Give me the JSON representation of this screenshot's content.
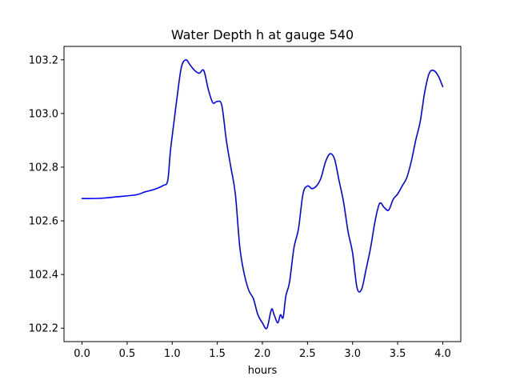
{
  "chart_data": {
    "type": "line",
    "title": "Water Depth h at gauge 540",
    "xlabel": "hours",
    "ylabel": "",
    "xlim": [
      -0.2,
      4.2
    ],
    "ylim": [
      102.15,
      103.25
    ],
    "xticks": [
      0.0,
      0.5,
      1.0,
      1.5,
      2.0,
      2.5,
      3.0,
      3.5,
      4.0
    ],
    "xtick_labels": [
      "0.0",
      "0.5",
      "1.0",
      "1.5",
      "2.0",
      "2.5",
      "3.0",
      "3.5",
      "4.0"
    ],
    "yticks": [
      102.2,
      102.4,
      102.6,
      102.8,
      103.0,
      103.2
    ],
    "ytick_labels": [
      "102.2",
      "102.4",
      "102.6",
      "102.8",
      "103.0",
      "103.2"
    ],
    "grid": false,
    "series": [
      {
        "color": "#0000ff",
        "x": [
          0.0,
          0.2,
          0.4,
          0.6,
          0.7,
          0.8,
          0.9,
          0.95,
          0.98,
          1.02,
          1.05,
          1.1,
          1.15,
          1.2,
          1.25,
          1.3,
          1.35,
          1.4,
          1.45,
          1.5,
          1.55,
          1.6,
          1.65,
          1.7,
          1.75,
          1.8,
          1.85,
          1.9,
          1.95,
          2.0,
          2.05,
          2.1,
          2.13,
          2.17,
          2.2,
          2.23,
          2.26,
          2.3,
          2.35,
          2.4,
          2.45,
          2.5,
          2.55,
          2.6,
          2.65,
          2.7,
          2.75,
          2.8,
          2.85,
          2.9,
          2.95,
          3.0,
          3.05,
          3.1,
          3.15,
          3.2,
          3.25,
          3.3,
          3.35,
          3.4,
          3.45,
          3.5,
          3.55,
          3.6,
          3.65,
          3.7,
          3.75,
          3.8,
          3.85,
          3.9,
          3.95,
          4.0
        ],
        "y": [
          102.683,
          102.684,
          102.69,
          102.697,
          102.708,
          102.717,
          102.732,
          102.75,
          102.86,
          102.97,
          103.05,
          103.17,
          103.2,
          103.18,
          103.16,
          103.15,
          103.16,
          103.09,
          103.04,
          103.045,
          103.03,
          102.9,
          102.8,
          102.7,
          102.5,
          102.4,
          102.34,
          102.31,
          102.25,
          102.22,
          102.2,
          102.27,
          102.25,
          102.22,
          102.25,
          102.24,
          102.32,
          102.37,
          102.5,
          102.57,
          102.7,
          102.73,
          102.72,
          102.73,
          102.76,
          102.82,
          102.85,
          102.83,
          102.75,
          102.67,
          102.56,
          102.48,
          102.35,
          102.345,
          102.42,
          102.5,
          102.6,
          102.665,
          102.65,
          102.64,
          102.68,
          102.7,
          102.73,
          102.76,
          102.82,
          102.9,
          102.97,
          103.08,
          103.15,
          103.16,
          103.14,
          103.1
        ]
      }
    ]
  }
}
